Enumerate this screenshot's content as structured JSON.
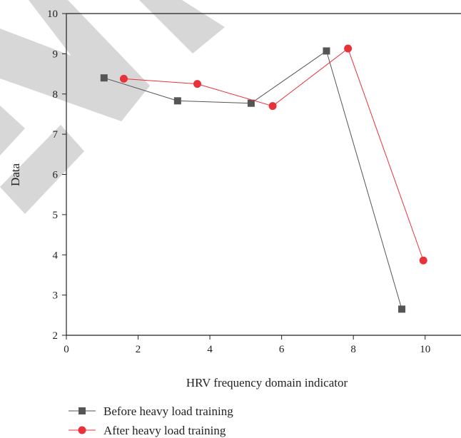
{
  "chart_data": {
    "type": "line",
    "xlabel": "HRV frequency domain indicator",
    "ylabel": "Data",
    "xlim": [
      0,
      11
    ],
    "ylim": [
      2,
      10
    ],
    "xticks": [
      0,
      2,
      4,
      6,
      8,
      10
    ],
    "yticks": [
      2,
      3,
      4,
      5,
      6,
      7,
      8,
      9,
      10
    ],
    "grid": false,
    "legend_position": "bottom-left",
    "series": [
      {
        "name": "Before heavy load training",
        "marker": "square",
        "color": "#555555",
        "x": [
          1.05,
          3.1,
          5.15,
          7.25,
          9.35
        ],
        "y": [
          8.4,
          7.83,
          7.77,
          9.07,
          2.65
        ]
      },
      {
        "name": "After heavy load training",
        "marker": "circle",
        "color": "#e8323a",
        "x": [
          1.6,
          3.65,
          5.75,
          7.85,
          9.95
        ],
        "y": [
          8.38,
          8.25,
          7.7,
          9.13,
          3.86
        ]
      }
    ]
  }
}
